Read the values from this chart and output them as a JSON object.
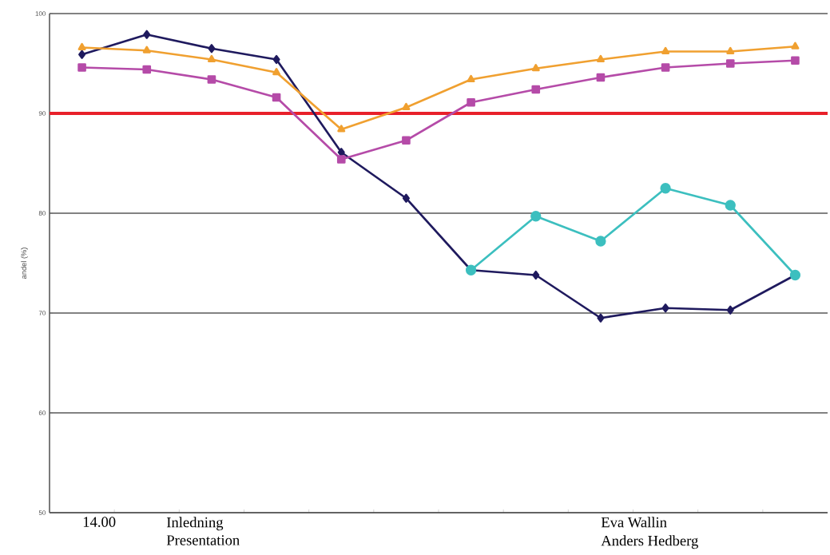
{
  "chart_data": {
    "type": "line",
    "ylabel": "andel (%)",
    "categories": [
      null,
      null,
      null,
      null,
      null,
      null,
      null,
      null,
      null,
      null,
      null,
      null
    ],
    "ylim": [
      50,
      100
    ],
    "yticks": [
      50,
      60,
      70,
      80,
      90,
      100
    ],
    "grid": "y",
    "series": [
      {
        "color": "#1f1a5e",
        "marker": "diamond",
        "values": [
          95.9,
          97.9,
          96.5,
          95.4,
          86.1,
          81.5,
          74.3,
          73.8,
          69.5,
          70.5,
          70.3,
          73.8
        ]
      },
      {
        "color": "#b54ba8",
        "marker": "square",
        "values": [
          94.6,
          94.4,
          93.4,
          91.6,
          85.4,
          87.3,
          91.1,
          92.4,
          93.6,
          94.6,
          95.0,
          95.3
        ]
      },
      {
        "color": "#f0a030",
        "marker": "triangle",
        "values": [
          96.6,
          96.3,
          95.4,
          94.1,
          88.4,
          90.6,
          93.4,
          94.5,
          95.4,
          96.2,
          96.2,
          96.7
        ]
      },
      {
        "color": "#3cbfbf",
        "marker": "circle",
        "values": [
          null,
          null,
          null,
          null,
          null,
          null,
          74.3,
          79.7,
          77.2,
          82.5,
          80.8,
          73.8
        ]
      }
    ],
    "ref_lines": [
      {
        "axis": "y",
        "value": 90,
        "color": "#e8202a"
      }
    ],
    "annotations": [
      "14.00",
      "Inledning",
      "Presentation",
      "Eva Wallin",
      "Anders Hedberg"
    ]
  }
}
